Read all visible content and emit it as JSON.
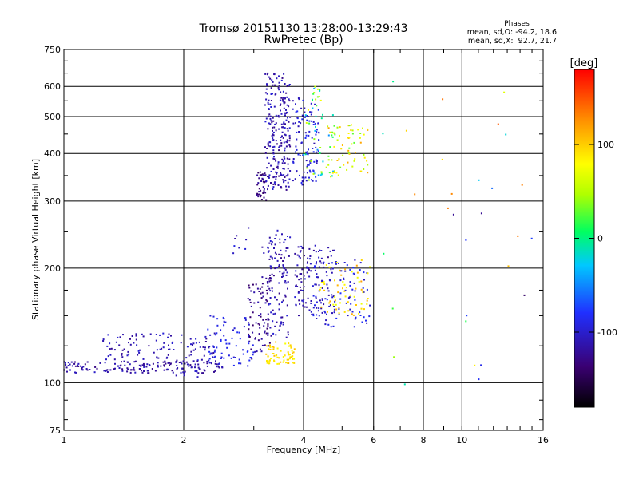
{
  "chart_data": {
    "type": "scatter",
    "title": "Tromsø 20151130 13:28:00-13:29:43",
    "subtitle": "RwPretec (Bp)",
    "xlabel": "Frequency [MHz]",
    "ylabel": "Stationary phase Virtual Height [km]",
    "x_scale": "log",
    "y_scale": "log",
    "xlim": [
      1,
      16
    ],
    "ylim": [
      75,
      750
    ],
    "x_ticks": [
      1,
      2,
      4,
      6,
      8,
      10,
      16
    ],
    "x_tick_labels": [
      "1",
      "2",
      "4",
      "6",
      "8",
      "10",
      "16"
    ],
    "y_ticks": [
      75,
      100,
      200,
      300,
      400,
      500,
      600,
      750
    ],
    "y_tick_labels": [
      "75",
      "100",
      "200",
      "300",
      "400",
      "500",
      "600",
      "750"
    ],
    "grid": true,
    "colorbar": {
      "label": "[deg]",
      "range": [
        -180,
        180
      ],
      "ticks": [
        -100,
        0,
        100
      ],
      "tick_labels": [
        "-100",
        "0",
        "100"
      ],
      "colors": [
        "#000000",
        "#3a0072",
        "#2030ff",
        "#00c8ff",
        "#00ff60",
        "#b0ff00",
        "#ffff00",
        "#ff9000",
        "#ff0000"
      ]
    },
    "stats": {
      "heading": "Phases",
      "line_o": "mean, sd,O: -94.2, 18.6",
      "line_x": "mean, sd,X:  92.7, 21.7"
    },
    "clusters": [
      {
        "f": [
          1.0,
          2.5
        ],
        "h": [
          106,
          114
        ],
        "phase": [
          -130,
          -100
        ],
        "n": 160
      },
      {
        "f": [
          1.25,
          2.4
        ],
        "h": [
          112,
          135
        ],
        "phase": [
          -125,
          -95
        ],
        "n": 110
      },
      {
        "f": [
          2.3,
          3.0
        ],
        "h": [
          110,
          150
        ],
        "phase": [
          -100,
          -80
        ],
        "n": 70
      },
      {
        "f": [
          2.9,
          3.3
        ],
        "h": [
          115,
          190
        ],
        "phase": [
          -140,
          -110
        ],
        "n": 80
      },
      {
        "f": [
          3.2,
          3.8
        ],
        "h": [
          112,
          128
        ],
        "phase": [
          75,
          110
        ],
        "n": 70
      },
      {
        "f": [
          3.25,
          3.7
        ],
        "h": [
          130,
          245
        ],
        "phase": [
          -130,
          -95
        ],
        "n": 110
      },
      {
        "f": [
          3.05,
          3.25
        ],
        "h": [
          300,
          360
        ],
        "phase": [
          -145,
          -115
        ],
        "n": 40
      },
      {
        "f": [
          3.2,
          3.7
        ],
        "h": [
          320,
          650
        ],
        "phase": [
          -130,
          -95
        ],
        "n": 240
      },
      {
        "f": [
          3.75,
          4.4
        ],
        "h": [
          330,
          560
        ],
        "phase": [
          -115,
          -80
        ],
        "n": 110
      },
      {
        "f": [
          4.0,
          4.8
        ],
        "h": [
          340,
          600
        ],
        "phase": [
          -50,
          80
        ],
        "n": 60
      },
      {
        "f": [
          4.6,
          5.8
        ],
        "h": [
          350,
          480
        ],
        "phase": [
          20,
          120
        ],
        "n": 60
      },
      {
        "f": [
          3.8,
          4.8
        ],
        "h": [
          150,
          230
        ],
        "phase": [
          -125,
          -95
        ],
        "n": 120
      },
      {
        "f": [
          4.2,
          5.9
        ],
        "h": [
          140,
          210
        ],
        "phase": [
          -110,
          -80
        ],
        "n": 90
      },
      {
        "f": [
          4.4,
          5.9
        ],
        "h": [
          150,
          210
        ],
        "phase": [
          70,
          120
        ],
        "n": 60
      },
      {
        "f": [
          2.6,
          3.6
        ],
        "h": [
          215,
          260
        ],
        "phase": [
          -120,
          -90
        ],
        "n": 14
      },
      {
        "f": [
          1.9,
          2.2
        ],
        "h": [
          100,
          112
        ],
        "phase": [
          -120,
          -95
        ],
        "n": 10
      },
      {
        "f": [
          6.3,
          16
        ],
        "h": [
          90,
          620
        ],
        "phase": [
          -150,
          150
        ],
        "n": 30
      }
    ]
  }
}
